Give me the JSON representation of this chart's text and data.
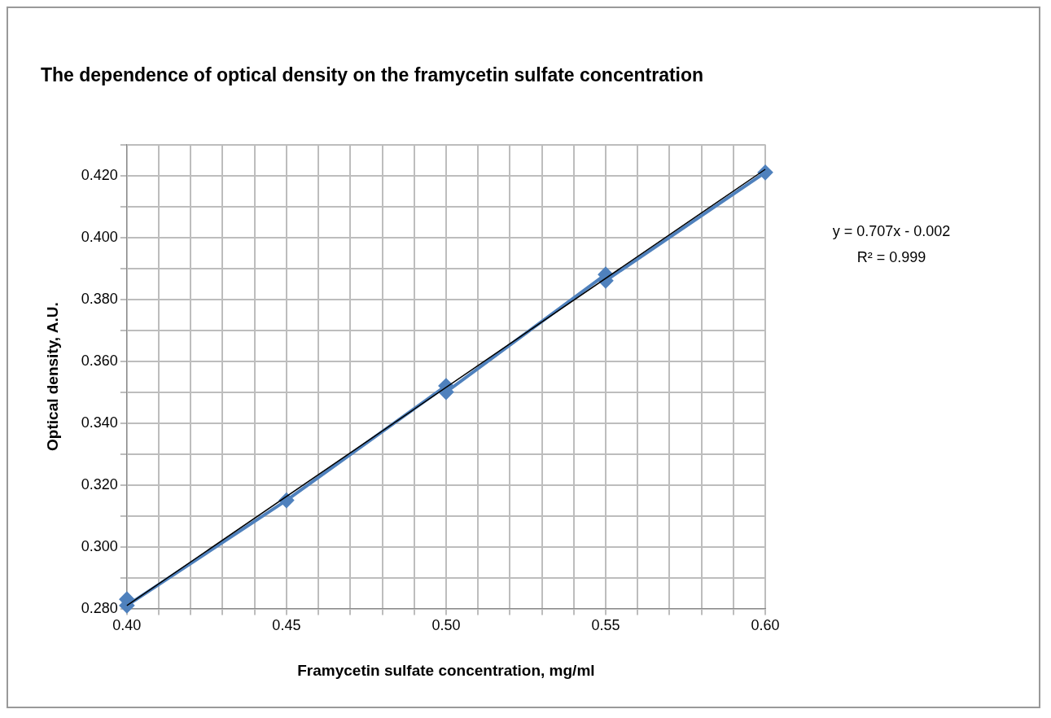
{
  "chart_data": {
    "type": "scatter",
    "title": "The dependence of optical density on the framycetin sulfate concentration",
    "xlabel": "Framycetin sulfate concentration, mg/ml",
    "ylabel": "Optical density, A.U.",
    "series": [
      {
        "type": "line",
        "color": "#4f81bd",
        "marker": "diamond",
        "x": [
          0.4,
          0.4,
          0.45,
          0.5,
          0.5,
          0.55,
          0.55,
          0.6
        ],
        "values": [
          0.283,
          0.281,
          0.315,
          0.352,
          0.35,
          0.388,
          0.386,
          0.421
        ]
      },
      {
        "type": "line",
        "color": "#000000",
        "marker": "none",
        "x": [
          0.4,
          0.6
        ],
        "values": [
          0.281,
          0.422
        ]
      }
    ],
    "xlim": [
      0.4,
      0.6
    ],
    "xticks": [
      {
        "value": 0.4,
        "label": "0.40"
      },
      {
        "value": 0.41,
        "label": null
      },
      {
        "value": 0.42,
        "label": null
      },
      {
        "value": 0.43,
        "label": null
      },
      {
        "value": 0.44,
        "label": null
      },
      {
        "value": 0.45,
        "label": "0.45"
      },
      {
        "value": 0.46,
        "label": null
      },
      {
        "value": 0.47,
        "label": null
      },
      {
        "value": 0.48,
        "label": null
      },
      {
        "value": 0.49,
        "label": null
      },
      {
        "value": 0.5,
        "label": "0.50"
      },
      {
        "value": 0.51,
        "label": null
      },
      {
        "value": 0.52,
        "label": null
      },
      {
        "value": 0.53,
        "label": null
      },
      {
        "value": 0.54,
        "label": null
      },
      {
        "value": 0.55,
        "label": "0.55"
      },
      {
        "value": 0.56,
        "label": null
      },
      {
        "value": 0.57,
        "label": null
      },
      {
        "value": 0.58,
        "label": null
      },
      {
        "value": 0.59,
        "label": null
      },
      {
        "value": 0.6,
        "label": "0.60"
      }
    ],
    "ylim": [
      0.28,
      0.43
    ],
    "yticks": [
      {
        "value": 0.28,
        "label": "0.280"
      },
      {
        "value": 0.29,
        "label": null
      },
      {
        "value": 0.3,
        "label": "0.300"
      },
      {
        "value": 0.31,
        "label": null
      },
      {
        "value": 0.32,
        "label": "0.320"
      },
      {
        "value": 0.33,
        "label": null
      },
      {
        "value": 0.34,
        "label": "0.340"
      },
      {
        "value": 0.35,
        "label": null
      },
      {
        "value": 0.36,
        "label": "0.360"
      },
      {
        "value": 0.37,
        "label": null
      },
      {
        "value": 0.38,
        "label": "0.380"
      },
      {
        "value": 0.39,
        "label": null
      },
      {
        "value": 0.4,
        "label": "0.400"
      },
      {
        "value": 0.41,
        "label": null
      },
      {
        "value": 0.42,
        "label": "0.420"
      },
      {
        "value": 0.43,
        "label": null
      }
    ],
    "grid": true,
    "legend": false,
    "annotations": [
      "y = 0.707x - 0.002",
      "R² = 0.999"
    ]
  }
}
